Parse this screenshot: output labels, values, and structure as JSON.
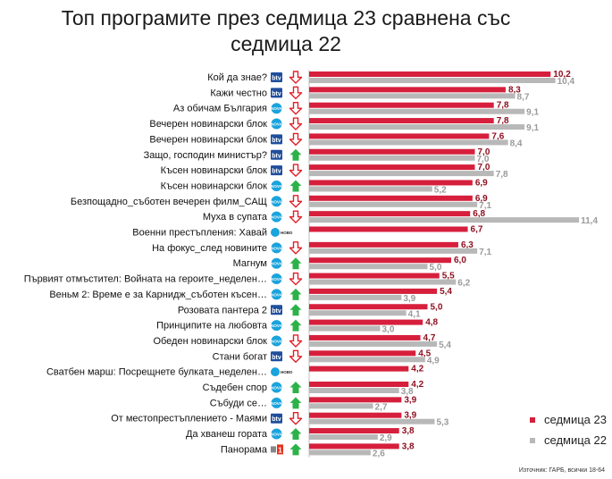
{
  "chart_data": {
    "type": "bar",
    "title": "Топ програмите през седмица 23 сравнена със седмица 22",
    "xlabel": "",
    "ylabel": "",
    "xlim": [
      0,
      12
    ],
    "categories": [
      "Кой да знае?",
      "Кажи честно",
      "Аз обичам България",
      "Вечерен новинарски блок",
      "Вечерен новинарски блок",
      "Защо, господин министър?",
      "Късен новинарски блок",
      "Късен новинарски блок",
      "Безпощадно_съботен вечерен филм_САЩ",
      "Муха в супата",
      "Военни престъпления: Хавай",
      "На фокус_след новините",
      "Магнум",
      "Първият отмъстител: Войната на героите_неделен…",
      "Веньм 2: Време е за Карнидж_съботен късен…",
      "Розовата пантера 2",
      "Принципите на любовта",
      "Обеден новинарски блок",
      "Стани богат",
      "Сватбен марш: Посрещнете булката_неделен…",
      "Съдебен спор",
      "Събуди се…",
      "От местопрестъплението - Маями",
      "Да хванеш гората",
      "Панорама"
    ],
    "channels": [
      "btv",
      "btv",
      "nova",
      "nova",
      "btv",
      "btv",
      "btv",
      "nova",
      "nova",
      "nova",
      "novo",
      "nova",
      "nova",
      "nova",
      "nova",
      "btv",
      "nova",
      "nova",
      "btv",
      "novo",
      "nova",
      "nova",
      "btv",
      "nova",
      "bnt"
    ],
    "trends": [
      "down",
      "down",
      "down",
      "down",
      "down",
      "up",
      "down",
      "up",
      "down",
      "down",
      "none",
      "down",
      "up",
      "down",
      "up",
      "up",
      "up",
      "down",
      "down",
      "none",
      "up",
      "up",
      "down",
      "up",
      "up"
    ],
    "series": [
      {
        "name": "седмица 23",
        "color": "#d61f3c",
        "values": [
          10.2,
          8.3,
          7.8,
          7.8,
          7.6,
          7.0,
          7.0,
          6.9,
          6.9,
          6.8,
          6.7,
          6.3,
          6.0,
          5.5,
          5.4,
          5.0,
          4.8,
          4.7,
          4.5,
          4.2,
          4.2,
          3.9,
          3.9,
          3.8,
          3.8
        ]
      },
      {
        "name": "седмица 22",
        "color": "#b8b8b8",
        "values": [
          10.4,
          8.7,
          9.1,
          9.1,
          8.4,
          7.0,
          7.8,
          5.2,
          7.1,
          11.4,
          null,
          7.1,
          5.0,
          6.2,
          3.9,
          4.1,
          3.0,
          5.4,
          4.9,
          null,
          3.8,
          2.7,
          5.3,
          2.9,
          2.6
        ]
      }
    ],
    "legend_position": "bottom-right",
    "grid": false
  },
  "labels": {
    "title": "Топ програмите през седмица 23 сравнена със седмица 22",
    "legend_w23": "седмица 23",
    "legend_w22": "седмица 22",
    "source": "Източник: ГАРБ, всички 18-64"
  },
  "colors": {
    "primary": "#d61f3c",
    "secondary": "#b8b8b8",
    "trend_up": "#2db24a",
    "trend_down": "#e0202a",
    "btv": "#1f4e9c",
    "nova": "#1aa3dc",
    "bnt": "#e5331f"
  },
  "logos": {
    "btv": "btv",
    "nova": "NOVA",
    "novo": "НОВО",
    "bnt": "1"
  }
}
